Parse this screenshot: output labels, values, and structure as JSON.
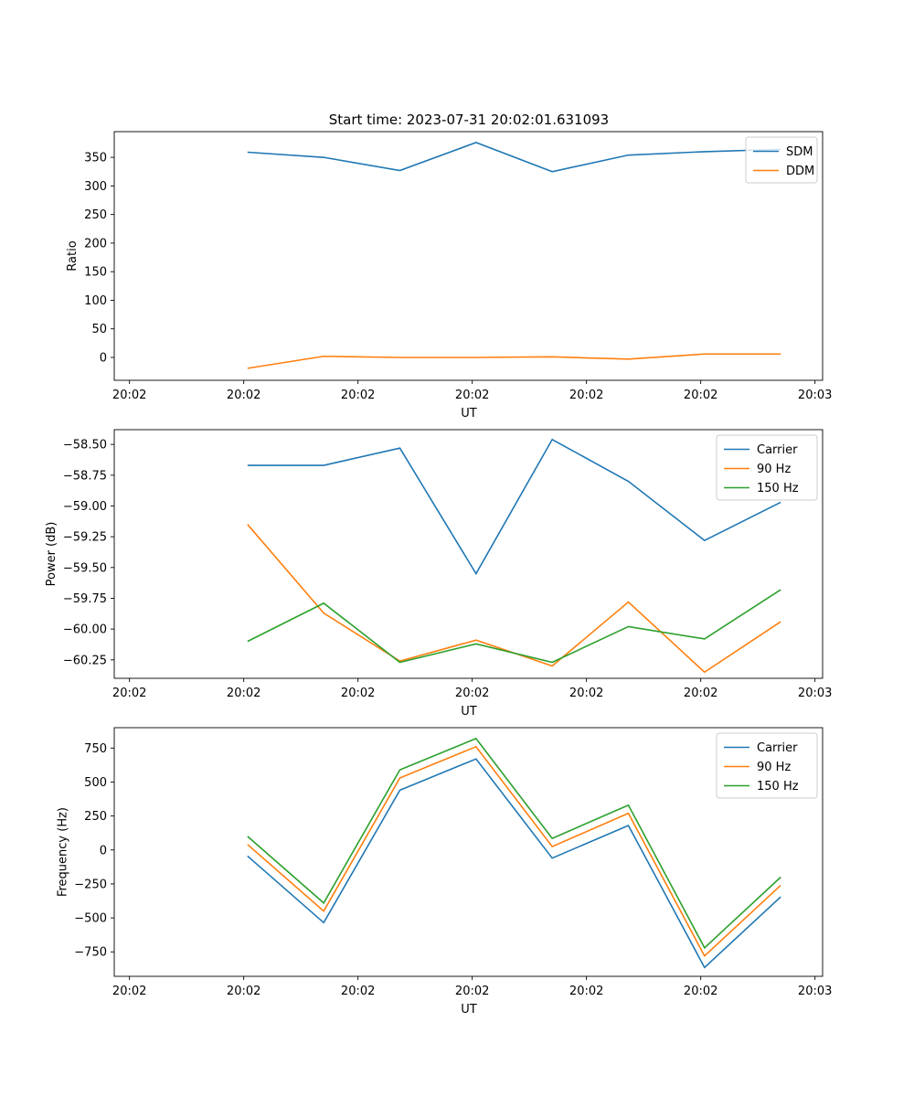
{
  "figure_title": "Start time: 2023-07-31 20:02:01.631093",
  "chart_data": [
    {
      "type": "line",
      "title": "Start time: 2023-07-31 20:02:01.631093",
      "xlabel": "UT",
      "ylabel": "Ratio",
      "x": [
        1,
        2,
        3,
        4,
        5,
        6,
        7,
        8
      ],
      "xlim": [
        -0.75,
        8.55
      ],
      "x_ticks": [
        -0.55,
        0.95,
        2.45,
        3.95,
        5.45,
        6.95,
        8.45
      ],
      "x_tick_labels": [
        "20:02",
        "20:02",
        "20:02",
        "20:02",
        "20:02",
        "20:02",
        "20:03"
      ],
      "ylim": [
        -40,
        395
      ],
      "y_ticks": [
        0,
        50,
        100,
        150,
        200,
        250,
        300,
        350
      ],
      "y_tick_labels": [
        "0",
        "50",
        "100",
        "150",
        "200",
        "250",
        "300",
        "350"
      ],
      "legend_position": "top-right",
      "series": [
        {
          "name": "SDM",
          "color": "#1f77b4",
          "values": [
            359,
            350,
            327,
            376,
            325,
            354,
            360,
            364
          ]
        },
        {
          "name": "DDM",
          "color": "#ff7f0e",
          "values": [
            -19,
            2,
            0,
            0,
            1,
            -3,
            6,
            6
          ]
        }
      ]
    },
    {
      "type": "line",
      "xlabel": "UT",
      "ylabel": "Power (dB)",
      "x": [
        1,
        2,
        3,
        4,
        5,
        6,
        7,
        8
      ],
      "xlim": [
        -0.75,
        8.55
      ],
      "x_ticks": [
        -0.55,
        0.95,
        2.45,
        3.95,
        5.45,
        6.95,
        8.45
      ],
      "x_tick_labels": [
        "20:02",
        "20:02",
        "20:02",
        "20:02",
        "20:02",
        "20:02",
        "20:03"
      ],
      "ylim": [
        -60.4,
        -58.38
      ],
      "y_ticks": [
        -60.25,
        -60.0,
        -59.75,
        -59.5,
        -59.25,
        -59.0,
        -58.75,
        -58.5
      ],
      "y_tick_labels": [
        "−60.25",
        "−60.00",
        "−59.75",
        "−59.50",
        "−59.25",
        "−59.00",
        "−58.75",
        "−58.50"
      ],
      "legend_position": "top-right",
      "series": [
        {
          "name": "Carrier",
          "color": "#1f77b4",
          "values": [
            -58.67,
            -58.67,
            -58.53,
            -59.55,
            -58.46,
            -58.8,
            -59.28,
            -58.97
          ]
        },
        {
          "name": "90 Hz",
          "color": "#ff7f0e",
          "values": [
            -59.15,
            -59.87,
            -60.26,
            -60.09,
            -60.3,
            -59.78,
            -60.35,
            -59.94
          ]
        },
        {
          "name": "150 Hz",
          "color": "#2ca02c",
          "values": [
            -60.1,
            -59.79,
            -60.27,
            -60.12,
            -60.27,
            -59.98,
            -60.08,
            -59.68
          ]
        }
      ]
    },
    {
      "type": "line",
      "xlabel": "UT",
      "ylabel": "Frequency (Hz)",
      "x": [
        1,
        2,
        3,
        4,
        5,
        6,
        7,
        8
      ],
      "xlim": [
        -0.75,
        8.55
      ],
      "x_ticks": [
        -0.55,
        0.95,
        2.45,
        3.95,
        5.45,
        6.95,
        8.45
      ],
      "x_tick_labels": [
        "20:02",
        "20:02",
        "20:02",
        "20:02",
        "20:02",
        "20:02",
        "20:03"
      ],
      "ylim": [
        -930,
        900
      ],
      "y_ticks": [
        -750,
        -500,
        -250,
        0,
        250,
        500,
        750
      ],
      "y_tick_labels": [
        "−750",
        "−500",
        "−250",
        "0",
        "250",
        "500",
        "750"
      ],
      "legend_position": "top-right",
      "series": [
        {
          "name": "Carrier",
          "color": "#1f77b4",
          "values": [
            -45,
            -535,
            440,
            670,
            -60,
            180,
            -865,
            -345
          ]
        },
        {
          "name": "90 Hz",
          "color": "#ff7f0e",
          "values": [
            40,
            -450,
            530,
            760,
            25,
            270,
            -780,
            -260
          ]
        },
        {
          "name": "150 Hz",
          "color": "#2ca02c",
          "values": [
            100,
            -390,
            590,
            820,
            85,
            330,
            -720,
            -200
          ]
        }
      ]
    }
  ]
}
